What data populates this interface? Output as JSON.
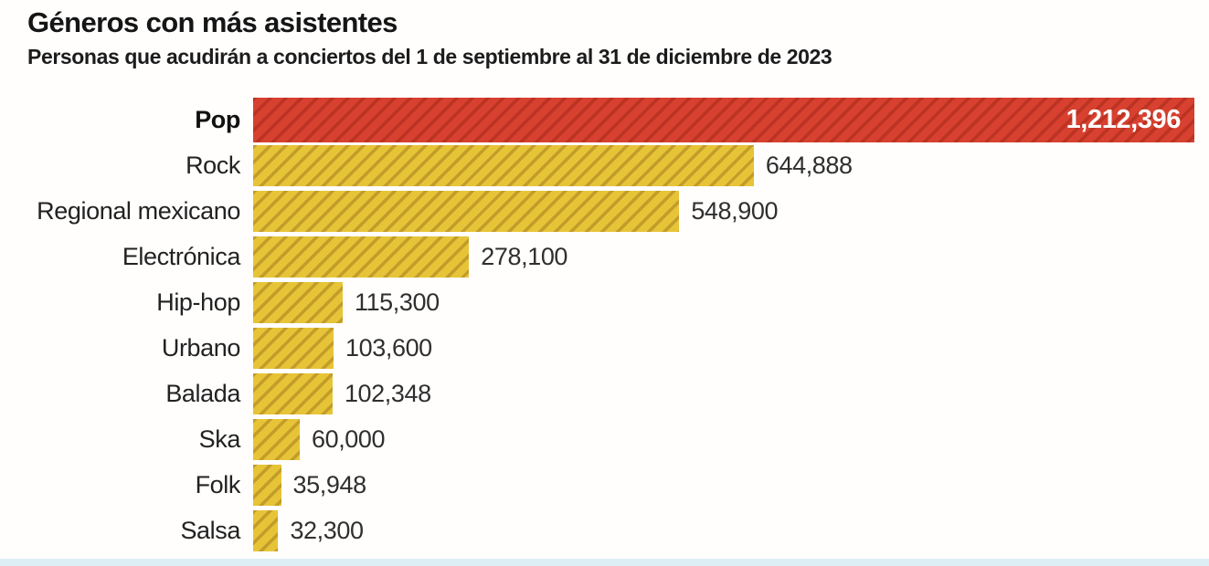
{
  "page": {
    "background_color": "#fffefd",
    "footer_strip_color": "#ddeef5"
  },
  "chart_data": {
    "type": "bar",
    "orientation": "horizontal",
    "title": "Géneros con más asistentes",
    "subtitle": "Personas que acudirán a conciertos del 1 de septiembre al 31 de diciembre de 2023",
    "categories": [
      "Pop",
      "Rock",
      "Regional mexicano",
      "Electrónica",
      "Hip-hop",
      "Urbano",
      "Balada",
      "Ska",
      "Folk",
      "Salsa"
    ],
    "values": [
      1212396,
      644888,
      548900,
      278100,
      115300,
      103600,
      102348,
      60000,
      35948,
      32300
    ],
    "value_labels": [
      "1,212,396",
      "644,888",
      "548,900",
      "278,100",
      "115,300",
      "103,600",
      "102,348",
      "60,000",
      "35,948",
      "32,300"
    ],
    "max_value": 1212396,
    "xlim": [
      0,
      1212396
    ],
    "highlight_index": 0,
    "grid": false,
    "legend": false,
    "hatch_pattern": "diagonal-forward-slash",
    "colors": {
      "highlight_fill": "#d8402f",
      "highlight_hatch": "#bb3323",
      "bar_fill": "#e7c437",
      "bar_hatch": "#c19d2a",
      "title_text": "#151515",
      "category_text": "#222222",
      "value_text": "#2f2f2f",
      "highlight_value_text": "#ffffff"
    }
  }
}
